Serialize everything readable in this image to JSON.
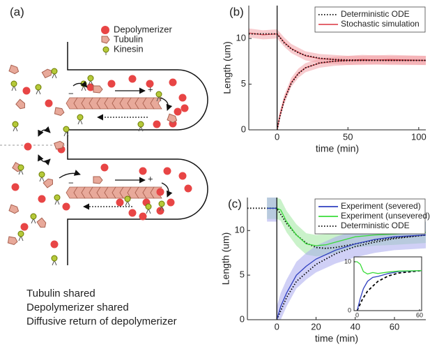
{
  "panel_a": {
    "label": "(a)",
    "legend": [
      "Depolymerizer",
      "Tubulin",
      "Kinesin"
    ],
    "minus": "−",
    "plus": "+",
    "captions": [
      "Tubulin shared",
      "Depolymerizer shared",
      "Diffusive return of depolymerizer"
    ]
  },
  "chart_data": [
    {
      "type": "line",
      "label": "(b)",
      "xlabel": "time (min)",
      "ylabel": "Length (um)",
      "xlim": [
        -20,
        105
      ],
      "ylim": [
        0,
        13.6
      ],
      "xticks": [
        0,
        50,
        100
      ],
      "yticks": [
        0,
        5,
        10
      ],
      "vline": 0,
      "legend": "top-right",
      "series": [
        {
          "name": "Deterministic ODE",
          "color": "#000000",
          "dash": "dotted",
          "lines": [
            {
              "x": [
                -20,
                -10,
                0,
                5,
                10,
                15,
                20,
                30,
                40,
                50,
                60,
                80,
                105
              ],
              "values": [
                10.5,
                10.5,
                10.5,
                9.51,
                8.86,
                8.43,
                8.15,
                7.84,
                7.7,
                7.65,
                7.62,
                7.6,
                7.6
              ]
            },
            {
              "x": [
                0,
                2,
                5,
                10,
                15,
                20,
                30,
                40,
                50,
                60,
                80,
                105
              ],
              "values": [
                0,
                1.51,
                3.24,
                5.1,
                6.16,
                6.78,
                7.33,
                7.51,
                7.57,
                7.6,
                7.6,
                7.6
              ]
            }
          ]
        },
        {
          "name": "Stochastic simulation",
          "color": "#e0505a",
          "band": 0.5,
          "band_color": "#f2a3a8",
          "lines": [
            {
              "x": [
                -20,
                -10,
                0,
                5,
                10,
                15,
                20,
                30,
                40,
                50,
                60,
                80,
                105
              ],
              "values": [
                10.6,
                10.4,
                10.5,
                9.6,
                8.9,
                8.5,
                8.1,
                7.8,
                7.7,
                7.6,
                7.7,
                7.6,
                7.6
              ]
            },
            {
              "x": [
                0,
                2,
                5,
                10,
                15,
                20,
                30,
                40,
                50,
                60,
                80,
                105
              ],
              "values": [
                0,
                1.6,
                3.3,
                5.2,
                6.2,
                6.8,
                7.3,
                7.5,
                7.6,
                7.6,
                7.7,
                7.6
              ]
            }
          ]
        }
      ]
    },
    {
      "type": "line",
      "label": "(c)",
      "xlabel": "time (min)",
      "ylabel": "Length (um)",
      "xlim": [
        -15,
        76
      ],
      "ylim": [
        0,
        13.7
      ],
      "xticks": [
        0,
        20,
        40,
        60
      ],
      "yticks": [
        0,
        5,
        10
      ],
      "vline": 0,
      "legend": "top-right",
      "series": [
        {
          "name": "Experiment (severed)",
          "color": "#2f3fbf",
          "band": 1.5,
          "band_color": "#a9a9ee",
          "lines": [
            {
              "x": [
                -5,
                0
              ],
              "values": [
                12.5,
                12.5
              ]
            },
            {
              "x": [
                0,
                2,
                5,
                10,
                15,
                20,
                30,
                40,
                50,
                60,
                76
              ],
              "values": [
                0,
                1.5,
                3,
                5,
                6,
                6.8,
                7.8,
                8.5,
                9,
                9.3,
                9.5
              ]
            }
          ]
        },
        {
          "name": "Experiment (unsevered)",
          "color": "#3adb3a",
          "band": 1.2,
          "band_color": "#9ee89e",
          "lines": [
            {
              "x": [
                -5,
                0,
                2,
                5,
                10,
                15,
                20,
                25,
                30,
                40,
                50,
                60,
                76
              ],
              "values": [
                12.5,
                12.5,
                12.3,
                11,
                9.5,
                8.5,
                8.3,
                8.4,
                8.7,
                9.3,
                9.5,
                9.6,
                9.8
              ]
            }
          ]
        },
        {
          "name": "Deterministic ODE",
          "color": "#000000",
          "dash": "dotted",
          "lines": [
            {
              "x": [
                -15,
                0,
                5,
                10,
                15,
                20,
                25,
                30,
                40,
                50,
                60,
                76
              ],
              "values": [
                12.5,
                12.5,
                10.8,
                9.5,
                8.6,
                8.1,
                8.0,
                8.1,
                8.5,
                8.9,
                9.2,
                9.5
              ]
            },
            {
              "x": [
                0,
                5,
                10,
                20,
                30,
                40,
                50,
                60,
                76
              ],
              "values": [
                0,
                2.5,
                4.3,
                6.2,
                7.4,
                8.2,
                8.7,
                9.1,
                9.5
              ]
            }
          ]
        }
      ]
    },
    {
      "type": "line",
      "box": true,
      "xlim": [
        -3,
        62
      ],
      "ylim": [
        0,
        11
      ],
      "xticks": [
        0,
        60
      ],
      "yticks": [
        0,
        10
      ],
      "series": [
        {
          "color": "#3adb3a",
          "lines": [
            {
              "x": [
                -3,
                0,
                3,
                6,
                10,
                15,
                20,
                30,
                40,
                62
              ],
              "values": [
                10,
                10,
                9.5,
                8,
                7.5,
                7.8,
                7.6,
                7.9,
                8.1,
                8.2
              ]
            }
          ]
        },
        {
          "color": "#2f3fbf",
          "lines": [
            {
              "x": [
                0,
                3,
                6,
                10,
                15,
                20,
                30,
                40,
                62
              ],
              "values": [
                0,
                2.5,
                4.5,
                6,
                6.8,
                7,
                7.6,
                8,
                8.2
              ]
            }
          ]
        },
        {
          "color": "#000000",
          "dash": "dashed",
          "lines": [
            {
              "x": [
                0,
                5,
                10,
                20,
                30,
                40,
                62
              ],
              "values": [
                0,
                2.3,
                4,
                6,
                7.1,
                7.7,
                8.2
              ]
            }
          ]
        }
      ]
    }
  ]
}
